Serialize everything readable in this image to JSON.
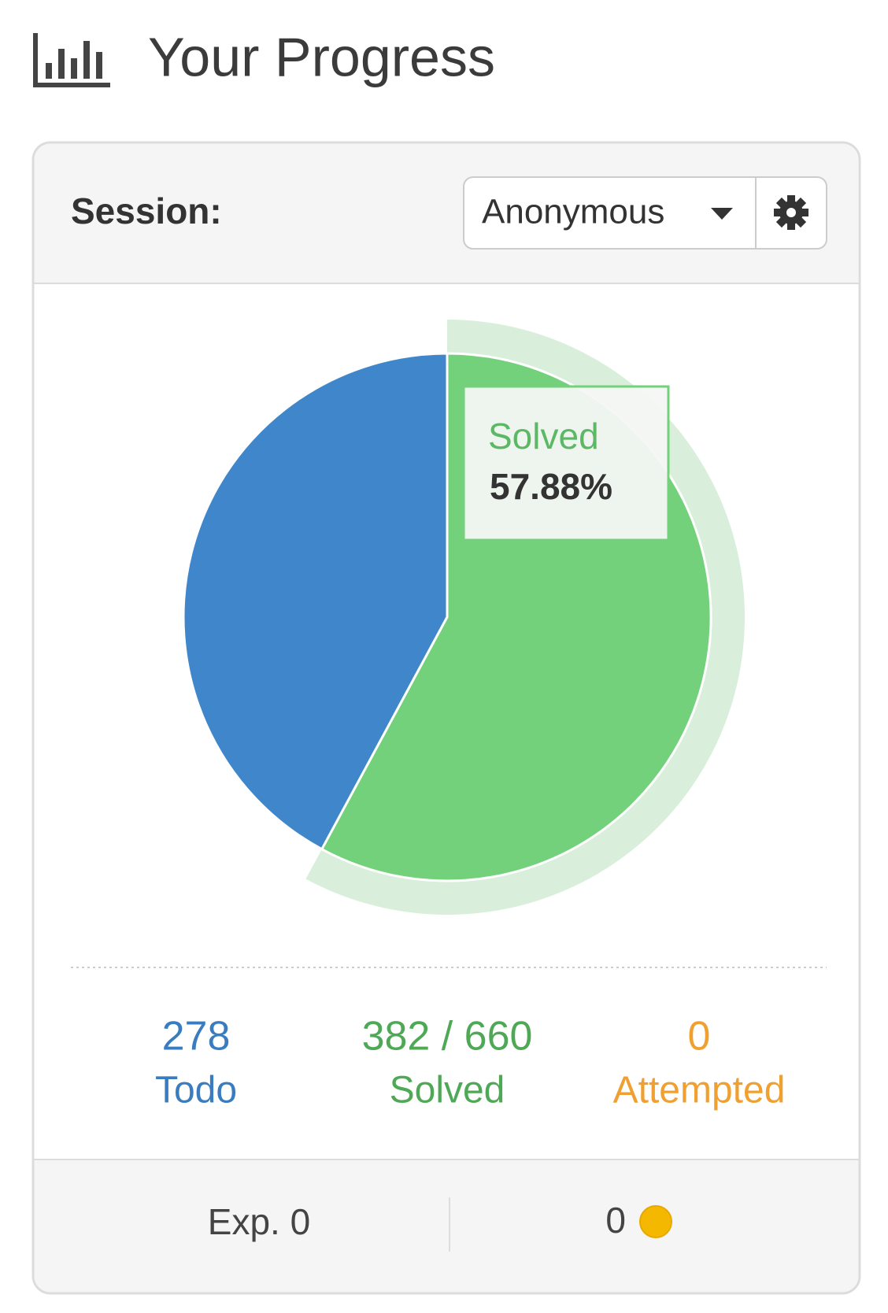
{
  "header": {
    "title": "Your Progress"
  },
  "session": {
    "label": "Session:",
    "user": "Anonymous"
  },
  "chart_data": {
    "type": "pie",
    "values": [
      278,
      382
    ],
    "colors": [
      "#3f86cb",
      "#72d17a"
    ],
    "highlight": 1,
    "highlight_color": "#d9efdb",
    "tooltip": {
      "name": "Solved",
      "text": "57.88%"
    }
  },
  "stats": [
    {
      "value": "278",
      "label": "Todo",
      "color": "#3a7cc0"
    },
    {
      "value": "382 / 660",
      "label": "Solved",
      "color": "#4ea855"
    },
    {
      "value": "0",
      "label": "Attempted",
      "color": "#f0a030"
    }
  ],
  "footer": {
    "exp": "Exp. 0",
    "coins": "0"
  }
}
